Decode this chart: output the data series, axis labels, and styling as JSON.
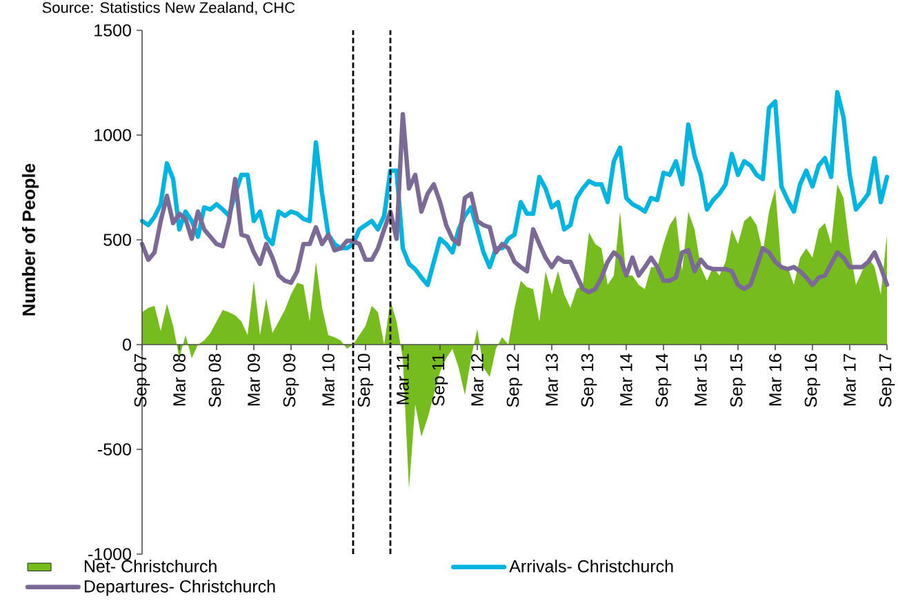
{
  "chart_data": {
    "type": "line",
    "ylabel": "Number of People",
    "annotations": [
      "Source: Statistics New Zealand, CHC"
    ],
    "x": [
      "2007-09",
      "2007-10",
      "2007-11",
      "2007-12",
      "2008-01",
      "2008-02",
      "2008-03",
      "2008-04",
      "2008-05",
      "2008-06",
      "2008-07",
      "2008-08",
      "2008-09",
      "2008-10",
      "2008-11",
      "2008-12",
      "2009-01",
      "2009-02",
      "2009-03",
      "2009-04",
      "2009-05",
      "2009-06",
      "2009-07",
      "2009-08",
      "2009-09",
      "2009-10",
      "2009-11",
      "2009-12",
      "2010-01",
      "2010-02",
      "2010-03",
      "2010-04",
      "2010-05",
      "2010-06",
      "2010-07",
      "2010-08",
      "2010-09",
      "2010-10",
      "2010-11",
      "2010-12",
      "2011-01",
      "2011-02",
      "2011-03",
      "2011-04",
      "2011-05",
      "2011-06",
      "2011-07",
      "2011-08",
      "2011-09",
      "2011-10",
      "2011-11",
      "2011-12",
      "2012-01",
      "2012-02",
      "2012-03",
      "2012-04",
      "2012-05",
      "2012-06",
      "2012-07",
      "2012-08",
      "2012-09",
      "2012-10",
      "2012-11",
      "2012-12",
      "2013-01",
      "2013-02",
      "2013-03",
      "2013-04",
      "2013-05",
      "2013-06",
      "2013-07",
      "2013-08",
      "2013-09",
      "2013-10",
      "2013-11",
      "2013-12",
      "2014-01",
      "2014-02",
      "2014-03",
      "2014-04",
      "2014-05",
      "2014-06",
      "2014-07",
      "2014-08",
      "2014-09",
      "2014-10",
      "2014-11",
      "2014-12",
      "2015-01",
      "2015-02",
      "2015-03",
      "2015-04",
      "2015-05",
      "2015-06",
      "2015-07",
      "2015-08",
      "2015-09",
      "2015-10",
      "2015-11",
      "2015-12",
      "2016-01",
      "2016-02",
      "2016-03",
      "2016-04",
      "2016-05",
      "2016-06",
      "2016-07",
      "2016-08",
      "2016-09",
      "2016-10",
      "2016-11",
      "2016-12",
      "2017-01",
      "2017-02",
      "2017-03",
      "2017-04",
      "2017-05",
      "2017-06",
      "2017-07",
      "2017-08",
      "2017-09"
    ],
    "series": [
      {
        "name": "Net- Christchurch",
        "type": "area",
        "color": "#77bc1f",
        "values": [
          155,
          175,
          185,
          65,
          195,
          90,
          -65,
          45,
          -65,
          0,
          20,
          55,
          110,
          165,
          155,
          140,
          110,
          45,
          305,
          45,
          220,
          55,
          110,
          165,
          240,
          295,
          285,
          110,
          395,
          175,
          45,
          35,
          20,
          -20,
          0,
          45,
          90,
          185,
          155,
          0,
          210,
          110,
          -65,
          -690,
          -285,
          -440,
          -350,
          -240,
          -130,
          -65,
          -20,
          -110,
          -240,
          -65,
          75,
          -110,
          -155,
          -20,
          35,
          0,
          175,
          305,
          275,
          265,
          110,
          350,
          240,
          350,
          240,
          175,
          265,
          285,
          535,
          480,
          460,
          285,
          330,
          635,
          330,
          330,
          285,
          265,
          370,
          370,
          480,
          570,
          615,
          350,
          635,
          550,
          370,
          305,
          370,
          330,
          395,
          550,
          480,
          590,
          615,
          570,
          440,
          635,
          745,
          370,
          370,
          285,
          415,
          460,
          415,
          550,
          580,
          480,
          765,
          700,
          460,
          285,
          350,
          415,
          370,
          240,
          525
        ]
      },
      {
        "name": "Arrivals- Christchurch",
        "color": "#00b4e0",
        "values": [
          590,
          570,
          610,
          670,
          865,
          790,
          550,
          635,
          590,
          515,
          655,
          645,
          670,
          645,
          615,
          720,
          810,
          810,
          590,
          635,
          515,
          480,
          635,
          615,
          635,
          625,
          600,
          590,
          965,
          720,
          525,
          480,
          460,
          460,
          480,
          550,
          570,
          590,
          550,
          615,
          830,
          830,
          460,
          385,
          360,
          320,
          285,
          395,
          505,
          480,
          440,
          550,
          615,
          655,
          550,
          440,
          370,
          460,
          460,
          505,
          525,
          680,
          625,
          625,
          800,
          745,
          655,
          680,
          550,
          570,
          700,
          745,
          780,
          765,
          765,
          680,
          875,
          940,
          700,
          670,
          655,
          635,
          700,
          690,
          820,
          810,
          875,
          765,
          1050,
          900,
          810,
          645,
          690,
          720,
          765,
          910,
          810,
          875,
          855,
          810,
          790,
          1130,
          1160,
          755,
          690,
          635,
          765,
          830,
          755,
          855,
          890,
          800,
          1205,
          1085,
          810,
          645,
          680,
          720,
          890,
          680,
          800
        ]
      },
      {
        "name": "Departures- Christchurch",
        "color": "#7b6a95",
        "values": [
          480,
          405,
          440,
          590,
          710,
          580,
          625,
          600,
          505,
          635,
          550,
          515,
          480,
          470,
          590,
          790,
          525,
          515,
          440,
          385,
          480,
          415,
          330,
          305,
          295,
          350,
          480,
          480,
          560,
          480,
          525,
          450,
          460,
          495,
          495,
          480,
          405,
          405,
          460,
          550,
          635,
          505,
          1100,
          745,
          810,
          635,
          720,
          765,
          680,
          570,
          505,
          480,
          700,
          720,
          590,
          570,
          560,
          440,
          480,
          460,
          395,
          370,
          350,
          550,
          480,
          415,
          370,
          415,
          395,
          395,
          330,
          265,
          250,
          265,
          320,
          395,
          440,
          415,
          330,
          415,
          330,
          370,
          415,
          370,
          305,
          305,
          320,
          440,
          450,
          350,
          405,
          370,
          360,
          360,
          360,
          350,
          285,
          265,
          285,
          370,
          460,
          440,
          395,
          370,
          360,
          370,
          350,
          320,
          285,
          320,
          330,
          385,
          440,
          415,
          370,
          370,
          370,
          395,
          440,
          370,
          285
        ]
      }
    ],
    "xlim": [
      "2007-09",
      "2017-09"
    ],
    "xticks": [
      {
        "value": "2007-09",
        "label": "Sep 07"
      },
      {
        "value": "2008-03",
        "label": "Mar 08"
      },
      {
        "value": "2008-09",
        "label": "Sep 08"
      },
      {
        "value": "2009-03",
        "label": "Mar 09"
      },
      {
        "value": "2009-09",
        "label": "Sep 09"
      },
      {
        "value": "2010-03",
        "label": "Mar 10"
      },
      {
        "value": "2010-09",
        "label": "Sep 10"
      },
      {
        "value": "2011-03",
        "label": "Mar 11"
      },
      {
        "value": "2011-09",
        "label": "Sep 11"
      },
      {
        "value": "2012-03",
        "label": "Mar 12"
      },
      {
        "value": "2012-09",
        "label": "Sep 12"
      },
      {
        "value": "2013-03",
        "label": "Mar 13"
      },
      {
        "value": "2013-09",
        "label": "Sep 13"
      },
      {
        "value": "2014-03",
        "label": "Mar 14"
      },
      {
        "value": "2014-09",
        "label": "Sep 14"
      },
      {
        "value": "2015-03",
        "label": "Mar 15"
      },
      {
        "value": "2015-09",
        "label": "Sep 15"
      },
      {
        "value": "2016-03",
        "label": "Mar 16"
      },
      {
        "value": "2016-09",
        "label": "Sep 16"
      },
      {
        "value": "2017-03",
        "label": "Mar 17"
      },
      {
        "value": "2017-09",
        "label": "Sep 17"
      }
    ],
    "ylim": [
      -1000,
      1500
    ],
    "yticks": [
      -1000,
      -500,
      0,
      500,
      1000,
      1500
    ],
    "ref_lines": [
      {
        "axis": "x",
        "value": "2010-07",
        "color": "#000000",
        "line_style": "dashed"
      },
      {
        "axis": "x",
        "value": "2011-01",
        "color": "#000000",
        "line_style": "dashed"
      }
    ],
    "legend": "bottom"
  }
}
